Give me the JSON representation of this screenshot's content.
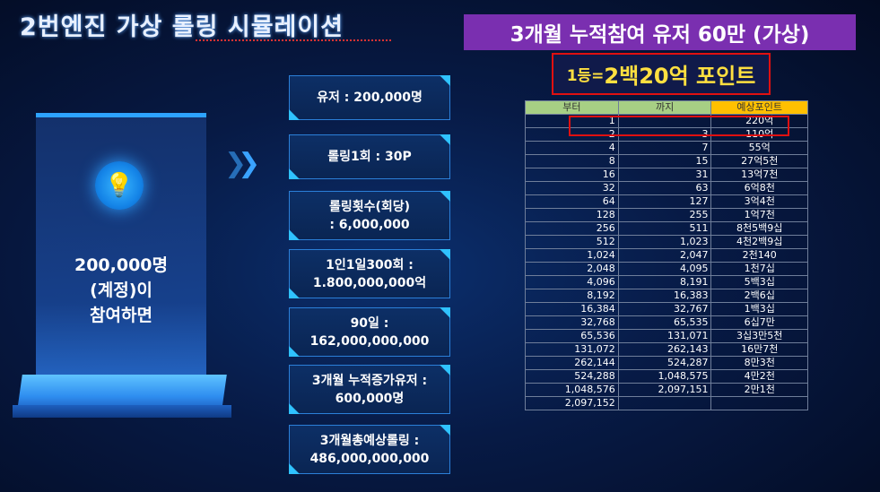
{
  "title": "2번엔진 가상 롤링 시뮬레이션",
  "banner": "3개월 누적참여 유저 60만 (가상)",
  "prize": {
    "small": "1등=",
    "big": "2백20억 포인트"
  },
  "left_panel": {
    "line1": "200,000명",
    "line2": "(계정)이",
    "line3": "참여하면",
    "icon": "lightbulb-icon"
  },
  "boxes": [
    {
      "l1": "유저 : 200,000명",
      "l2": ""
    },
    {
      "l1": "롤링1회 : 30P",
      "l2": ""
    },
    {
      "l1": "롤링횟수(회당)",
      "l2": ": 6,000,000"
    },
    {
      "l1": "1인1일300회 :",
      "l2": "1.800,000,000억"
    },
    {
      "l1": "90일 :",
      "l2": "162,000,000,000"
    },
    {
      "l1": "3개월 누적증가유저 :",
      "l2": "600,000명"
    },
    {
      "l1": "3개월총예상롤링 :",
      "l2": "486,000,000,000"
    }
  ],
  "table": {
    "headers": [
      "부터",
      "까지",
      "예상포인트"
    ],
    "rows": [
      [
        "1",
        "",
        "220억"
      ],
      [
        "2",
        "3",
        "110억"
      ],
      [
        "4",
        "7",
        "55억"
      ],
      [
        "8",
        "15",
        "27억5천"
      ],
      [
        "16",
        "31",
        "13억7천"
      ],
      [
        "32",
        "63",
        "6억8천"
      ],
      [
        "64",
        "127",
        "3억4천"
      ],
      [
        "128",
        "255",
        "1억7천"
      ],
      [
        "256",
        "511",
        "8천5백9십"
      ],
      [
        "512",
        "1,023",
        "4천2백9십"
      ],
      [
        "1,024",
        "2,047",
        "2천140"
      ],
      [
        "2,048",
        "4,095",
        "1천7십"
      ],
      [
        "4,096",
        "8,191",
        "5백3십"
      ],
      [
        "8,192",
        "16,383",
        "2백6십"
      ],
      [
        "16,384",
        "32,767",
        "1백3십"
      ],
      [
        "32,768",
        "65,535",
        "6십7만"
      ],
      [
        "65,536",
        "131,071",
        "3십3만5천"
      ],
      [
        "131,072",
        "262,143",
        "16만7천"
      ],
      [
        "262,144",
        "524,287",
        "8만3천"
      ],
      [
        "524,288",
        "1,048,575",
        "4만2천"
      ],
      [
        "1,048,576",
        "2,097,151",
        "2만1천"
      ],
      [
        "2,097,152",
        "",
        ""
      ]
    ]
  },
  "colors": {
    "banner": "#7a2fb0",
    "prize_text": "#ffe040",
    "highlight": "#e01010",
    "header_green": "#a7cf84",
    "header_orange": "#ffc000"
  }
}
